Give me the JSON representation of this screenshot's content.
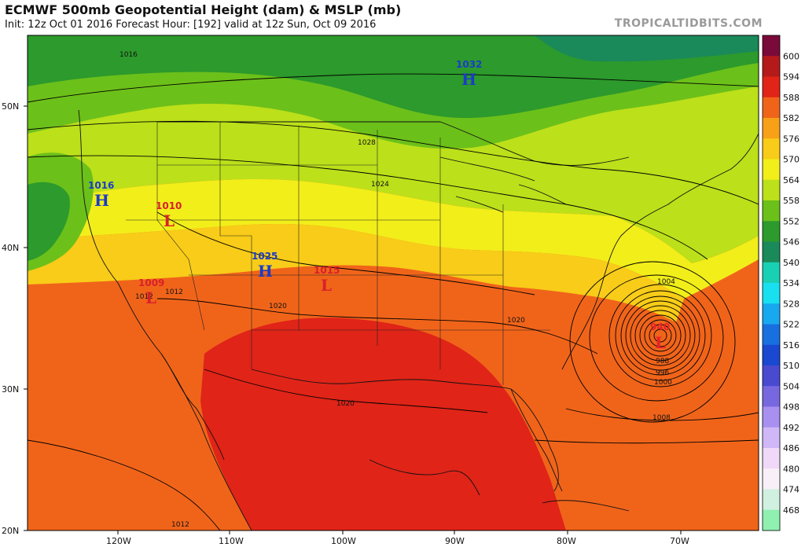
{
  "header": {
    "title": "ECMWF 500mb Geopotential Height (dam) & MSLP (mb)",
    "subtitle": "Init: 12z Oct 01 2016   Forecast Hour: [192]   valid at 12z Sun, Oct 09 2016",
    "site": "TROPICALTIDBITS.COM"
  },
  "colorbar": {
    "labels": [
      "600",
      "594",
      "588",
      "582",
      "576",
      "570",
      "564",
      "558",
      "552",
      "546",
      "540",
      "534",
      "528",
      "522",
      "516",
      "510",
      "504",
      "498",
      "492",
      "486",
      "480",
      "474",
      "468"
    ],
    "colors": [
      "#7a0a3a",
      "#b51a1a",
      "#e02418",
      "#f0641a",
      "#f8a018",
      "#f8cc18",
      "#f2ee1a",
      "#bce01a",
      "#6cc01a",
      "#2c9a2c",
      "#1a8a5a",
      "#1ad0b4",
      "#18e0f0",
      "#18a8f0",
      "#1870e0",
      "#1a48d0",
      "#4a4ad0",
      "#7868e0",
      "#a890f0",
      "#d0b8f8",
      "#f0d8f8",
      "#f8f0f8",
      "#d0f0e0",
      "#90f0b0"
    ]
  },
  "axes": {
    "lat_labels": [
      "50N",
      "40N",
      "30N",
      "20N"
    ],
    "lon_labels": [
      "120W",
      "110W",
      "100W",
      "90W",
      "80W",
      "70W"
    ]
  },
  "pressure_centers": [
    {
      "type": "H",
      "value": "1032",
      "color": "#1a3cc8"
    },
    {
      "type": "H",
      "value": "1016",
      "color": "#1a3cc8"
    },
    {
      "type": "L",
      "value": "1010",
      "color": "#d8202a"
    },
    {
      "type": "L",
      "value": "1009",
      "color": "#d8202a"
    },
    {
      "type": "H",
      "value": "1025",
      "color": "#1a3cc8"
    },
    {
      "type": "L",
      "value": "1015",
      "color": "#d8202a"
    },
    {
      "type": "L",
      "value": "940",
      "color": "#e8202a"
    }
  ],
  "isobar_labels": [
    "1016",
    "1028",
    "1024",
    "1012",
    "1020",
    "1020",
    "1020",
    "1004",
    "988",
    "996",
    "1000",
    "1008",
    "1012",
    "1012"
  ]
}
